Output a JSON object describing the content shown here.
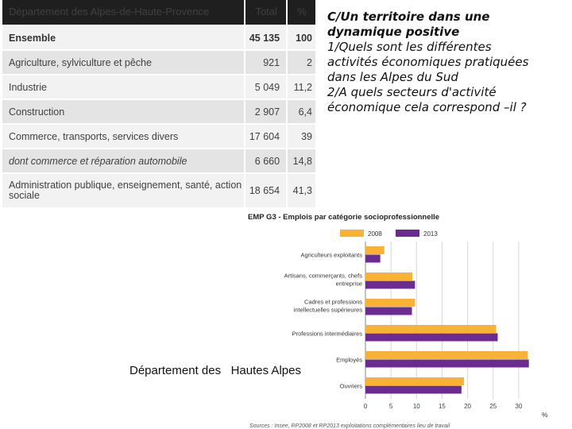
{
  "table": {
    "header": {
      "title": "Département des Alpes-de-Haute-Provence",
      "total": "Total",
      "pct": "%"
    },
    "rows": [
      {
        "label": "Ensemble",
        "total": "45 135",
        "pct": "100"
      },
      {
        "label": "Agriculture, sylviculture et pêche",
        "total": "921",
        "pct": "2"
      },
      {
        "label": "Industrie",
        "total": "5 049",
        "pct": "11,2"
      },
      {
        "label": "Construction",
        "total": "2 907",
        "pct": "6,4"
      },
      {
        "label": "Commerce, transports, services divers",
        "total": "17 604",
        "pct": "39"
      },
      {
        "label": "dont commerce et réparation automobile",
        "total": "6 660",
        "pct": "14,8"
      },
      {
        "label": "Administration publique, enseignement, santé, action sociale",
        "total": "18 654",
        "pct": "41,3"
      }
    ]
  },
  "questions": {
    "heading_line1": "C/Un territoire dans une",
    "heading_line2": "dynamique positive",
    "q1_line1": "1/Quels sont les différentes",
    "q1_line2": "activités économiques pratiquées",
    "q1_line3": "dans les Alpes du Sud",
    "q2_line1": "2/A quels secteurs d'activité",
    "q2_line2": "économique cela correspond –il ?"
  },
  "caption": "Département des   Hautes Alpes",
  "chart_data": {
    "type": "bar",
    "orientation": "horizontal",
    "title": "EMP G3 - Emplois par catégorie socioprofessionnelle",
    "categories": [
      [
        "Agriculteurs exploitants"
      ],
      [
        "Artisans, commerçants, chefs",
        "entreprise"
      ],
      [
        "Cadres et professions",
        "intellectuelles supérieures"
      ],
      [
        "Professions intermédiaires"
      ],
      [
        "Employés"
      ],
      [
        "Ouvriers"
      ]
    ],
    "series": [
      {
        "name": "2008",
        "color": "#f9b233",
        "values": [
          3.7,
          9.2,
          9.7,
          25.6,
          31.8,
          19.3
        ]
      },
      {
        "name": "2013",
        "color": "#6a2c91",
        "values": [
          2.9,
          9.7,
          9.1,
          25.9,
          32.0,
          18.8
        ]
      }
    ],
    "x_ticks": [
      "0",
      "5",
      "10",
      "15",
      "20",
      "25",
      "30"
    ],
    "xlim": [
      0,
      35
    ],
    "unit": "%",
    "legend_position": "top",
    "grid": true,
    "source": "Sources : Insee, RP2008 et RP2013 exploitations complémentaires lieu de travail"
  }
}
